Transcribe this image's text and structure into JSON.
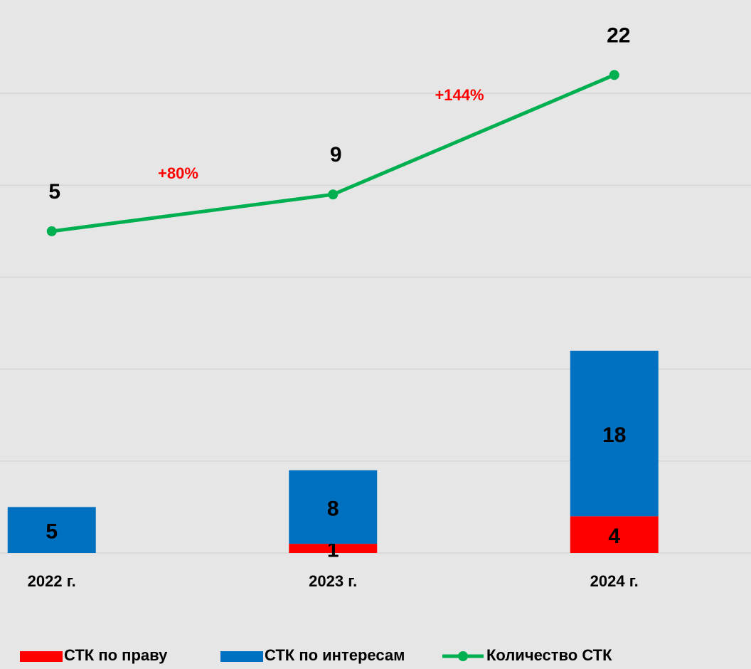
{
  "chart_data": {
    "type": "bar",
    "categories": [
      "2022 г.",
      "2023 г.",
      "2024 г."
    ],
    "series": [
      {
        "name": "СТК по праву",
        "color": "#ff0000",
        "values": [
          null,
          1,
          4
        ]
      },
      {
        "name": "СТК по интересам",
        "color": "#0070c0",
        "values": [
          5,
          8,
          18
        ]
      },
      {
        "name": "Количество СТК",
        "color": "#00b050",
        "type": "line",
        "axis": "y2",
        "values": [
          5,
          9,
          22
        ]
      }
    ],
    "annotations": [
      "+80%",
      "+144%"
    ],
    "ylim": [
      0,
      60
    ],
    "yticks": [
      0,
      10,
      20,
      30,
      40,
      50
    ],
    "y2lim": [
      -30,
      30
    ],
    "grid": true,
    "stacked": true,
    "legend": "bottom"
  }
}
